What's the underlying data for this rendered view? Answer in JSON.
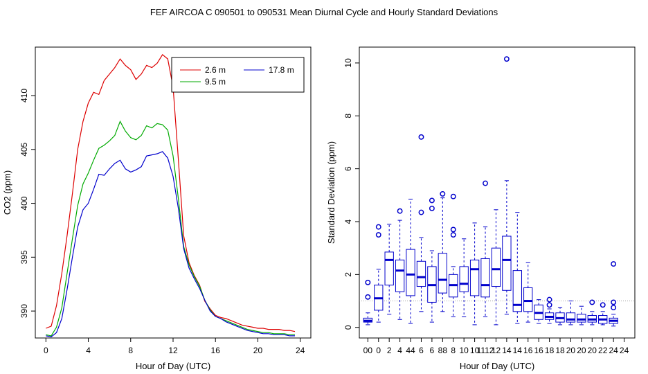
{
  "title": "FEF   AIRCOA C   090501 to 090531   Mean Diurnal Cycle and Hourly Standard Deviations",
  "colors": {
    "h2_6": "#dd0000",
    "h9_5": "#00aa00",
    "h17_8": "#0000cc",
    "box": "#0000cc",
    "ref": "#999999"
  },
  "chart_data": [
    {
      "type": "line",
      "title": "",
      "xlabel": "Hour of Day (UTC)",
      "ylabel": "CO2 (ppm)",
      "xlim": [
        -1,
        25
      ],
      "ylim": [
        387.5,
        414.5
      ],
      "xticks": [
        0,
        4,
        8,
        12,
        16,
        20,
        24
      ],
      "yticks": [
        390,
        395,
        400,
        405,
        410
      ],
      "legend": {
        "position": "top-right",
        "entries": [
          "2.6 m",
          "9.5 m",
          "17.8 m"
        ]
      },
      "series": [
        {
          "name": "2.6 m",
          "color": "#dd0000",
          "x": [
            0,
            0.5,
            1,
            1.5,
            2,
            2.5,
            3,
            3.5,
            4,
            4.5,
            5,
            5.5,
            6,
            6.5,
            7,
            7.5,
            8,
            8.5,
            9,
            9.5,
            10,
            10.5,
            11,
            11.5,
            12,
            12.5,
            13,
            13.5,
            14,
            14.5,
            15,
            15.5,
            16,
            16.5,
            17,
            17.5,
            18,
            18.5,
            19,
            19.5,
            20,
            20.5,
            21,
            21.5,
            22,
            22.5,
            23,
            23.5
          ],
          "y": [
            388.4,
            388.6,
            390.5,
            393.5,
            397.0,
            400.9,
            405.0,
            407.6,
            409.3,
            410.3,
            410.1,
            411.4,
            412.0,
            412.6,
            413.4,
            412.8,
            412.4,
            411.5,
            412.0,
            412.8,
            412.6,
            413.0,
            413.8,
            413.4,
            410.8,
            404.0,
            397.0,
            394.5,
            393.3,
            392.4,
            390.9,
            390.2,
            389.6,
            389.4,
            389.3,
            389.1,
            388.9,
            388.7,
            388.6,
            388.5,
            388.4,
            388.4,
            388.3,
            388.3,
            388.3,
            388.2,
            388.2,
            388.1
          ]
        },
        {
          "name": "9.5 m",
          "color": "#00aa00",
          "x": [
            0,
            0.5,
            1,
            1.5,
            2,
            2.5,
            3,
            3.5,
            4,
            4.5,
            5,
            5.5,
            6,
            6.5,
            7,
            7.5,
            8,
            8.5,
            9,
            9.5,
            10,
            10.5,
            11,
            11.5,
            12,
            12.5,
            13,
            13.5,
            14,
            14.5,
            15,
            15.5,
            16,
            16.5,
            17,
            17.5,
            18,
            18.5,
            19,
            19.5,
            20,
            20.5,
            21,
            21.5,
            22,
            22.5,
            23,
            23.5
          ],
          "y": [
            387.8,
            387.7,
            388.5,
            390.3,
            393.5,
            396.7,
            399.8,
            401.8,
            402.8,
            404.0,
            405.1,
            405.4,
            405.8,
            406.3,
            407.6,
            406.7,
            406.1,
            405.9,
            406.3,
            407.2,
            407.0,
            407.4,
            407.3,
            406.8,
            404.4,
            400.4,
            396.0,
            394.3,
            393.2,
            392.3,
            391.0,
            390.1,
            389.5,
            389.3,
            389.1,
            388.9,
            388.7,
            388.5,
            388.3,
            388.2,
            388.1,
            388.0,
            388.0,
            387.9,
            387.9,
            387.9,
            387.8,
            387.8
          ]
        },
        {
          "name": "17.8 m",
          "color": "#0000cc",
          "x": [
            0,
            0.5,
            1,
            1.5,
            2,
            2.5,
            3,
            3.5,
            4,
            4.5,
            5,
            5.5,
            6,
            6.5,
            7,
            7.5,
            8,
            8.5,
            9,
            9.5,
            10,
            10.5,
            11,
            11.5,
            12,
            12.5,
            13,
            13.5,
            14,
            14.5,
            15,
            15.5,
            16,
            16.5,
            17,
            17.5,
            18,
            18.5,
            19,
            19.5,
            20,
            20.5,
            21,
            21.5,
            22,
            22.5,
            23,
            23.5
          ],
          "y": [
            387.7,
            387.6,
            388.0,
            389.3,
            392.0,
            395.0,
            397.8,
            399.4,
            400.0,
            401.3,
            402.7,
            402.6,
            403.2,
            403.7,
            404.0,
            403.2,
            402.9,
            403.1,
            403.4,
            404.4,
            404.5,
            404.6,
            404.8,
            404.2,
            402.5,
            399.5,
            395.8,
            394.0,
            393.0,
            392.1,
            391.0,
            390.0,
            389.5,
            389.3,
            389.0,
            388.8,
            388.6,
            388.4,
            388.2,
            388.1,
            388.0,
            387.9,
            387.9,
            387.8,
            387.8,
            387.8,
            387.7,
            387.7
          ]
        }
      ]
    },
    {
      "type": "box",
      "title": "",
      "xlabel": "Hour of Day (UTC)",
      "ylabel": "Standard Deviation (ppm)",
      "xlim": [
        -0.8,
        25
      ],
      "ylim": [
        -0.4,
        10.6
      ],
      "yticks": [
        0,
        2,
        4,
        6,
        8,
        10
      ],
      "xtick_labels": [
        "00",
        "0",
        "2",
        "4",
        "44",
        "6",
        "6",
        "88",
        "8",
        "10",
        "10",
        "1112",
        "12",
        "14",
        "14",
        "16",
        "16",
        "18",
        "18",
        "20",
        "20",
        "20",
        "22",
        "24",
        "24"
      ],
      "reference_line": 1,
      "boxes": [
        {
          "x": 0.0,
          "q1": 0.2,
          "median": 0.25,
          "q3": 0.35,
          "wlo": 0.1,
          "whi": 0.55,
          "outliers": [
            1.15,
            1.7
          ]
        },
        {
          "x": 1.0,
          "q1": 0.65,
          "median": 1.1,
          "q3": 1.6,
          "wlo": 0.2,
          "whi": 2.2,
          "outliers": [
            3.5,
            3.8
          ]
        },
        {
          "x": 2.0,
          "q1": 1.6,
          "median": 2.55,
          "q3": 2.85,
          "wlo": 0.5,
          "whi": 3.9,
          "outliers": []
        },
        {
          "x": 3.0,
          "q1": 1.35,
          "median": 2.15,
          "q3": 2.55,
          "wlo": 0.3,
          "whi": 4.05,
          "outliers": [
            4.4
          ]
        },
        {
          "x": 4.0,
          "q1": 1.2,
          "median": 2.0,
          "q3": 2.95,
          "wlo": 0.15,
          "whi": 4.85,
          "outliers": []
        },
        {
          "x": 5.0,
          "q1": 1.55,
          "median": 1.9,
          "q3": 2.5,
          "wlo": 0.6,
          "whi": 3.4,
          "outliers": [
            4.35,
            7.2
          ]
        },
        {
          "x": 6.0,
          "q1": 0.95,
          "median": 1.6,
          "q3": 2.3,
          "wlo": 0.2,
          "whi": 2.9,
          "outliers": [
            4.5,
            4.8
          ]
        },
        {
          "x": 7.0,
          "q1": 1.3,
          "median": 1.8,
          "q3": 2.8,
          "wlo": 0.6,
          "whi": 4.9,
          "outliers": [
            5.05
          ]
        },
        {
          "x": 8.0,
          "q1": 1.15,
          "median": 1.6,
          "q3": 2.0,
          "wlo": 0.4,
          "whi": 2.3,
          "outliers": [
            3.5,
            3.7,
            4.95
          ]
        },
        {
          "x": 9.0,
          "q1": 1.35,
          "median": 1.65,
          "q3": 2.3,
          "wlo": 0.4,
          "whi": 3.35,
          "outliers": []
        },
        {
          "x": 10.0,
          "q1": 1.2,
          "median": 2.2,
          "q3": 2.55,
          "wlo": 0.1,
          "whi": 3.95,
          "outliers": []
        },
        {
          "x": 11.0,
          "q1": 1.15,
          "median": 1.6,
          "q3": 2.6,
          "wlo": 0.4,
          "whi": 3.8,
          "outliers": [
            5.45
          ]
        },
        {
          "x": 12.0,
          "q1": 1.55,
          "median": 2.2,
          "q3": 3.0,
          "wlo": 0.1,
          "whi": 4.45,
          "outliers": []
        },
        {
          "x": 13.0,
          "q1": 1.4,
          "median": 2.55,
          "q3": 3.45,
          "wlo": 0.5,
          "whi": 5.55,
          "outliers": [
            10.15
          ]
        },
        {
          "x": 14.0,
          "q1": 0.6,
          "median": 0.85,
          "q3": 2.15,
          "wlo": 0.15,
          "whi": 4.35,
          "outliers": []
        },
        {
          "x": 15.0,
          "q1": 0.6,
          "median": 1.0,
          "q3": 1.5,
          "wlo": 0.2,
          "whi": 2.45,
          "outliers": []
        },
        {
          "x": 16.0,
          "q1": 0.3,
          "median": 0.55,
          "q3": 0.85,
          "wlo": 0.15,
          "whi": 1.05,
          "outliers": []
        },
        {
          "x": 17.0,
          "q1": 0.3,
          "median": 0.4,
          "q3": 0.55,
          "wlo": 0.15,
          "whi": 0.7,
          "outliers": [
            0.85,
            1.05
          ]
        },
        {
          "x": 18.0,
          "q1": 0.2,
          "median": 0.35,
          "q3": 0.55,
          "wlo": 0.1,
          "whi": 0.75,
          "outliers": []
        },
        {
          "x": 19.0,
          "q1": 0.2,
          "median": 0.3,
          "q3": 0.55,
          "wlo": 0.1,
          "whi": 1.0,
          "outliers": []
        },
        {
          "x": 20.0,
          "q1": 0.2,
          "median": 0.3,
          "q3": 0.5,
          "wlo": 0.1,
          "whi": 0.8,
          "outliers": []
        },
        {
          "x": 21.0,
          "q1": 0.2,
          "median": 0.3,
          "q3": 0.45,
          "wlo": 0.1,
          "whi": 0.6,
          "outliers": [
            0.95
          ]
        },
        {
          "x": 22.0,
          "q1": 0.15,
          "median": 0.3,
          "q3": 0.45,
          "wlo": 0.1,
          "whi": 0.6,
          "outliers": [
            0.85
          ]
        },
        {
          "x": 23.0,
          "q1": 0.15,
          "median": 0.25,
          "q3": 0.35,
          "wlo": 0.05,
          "whi": 0.5,
          "outliers": [
            0.75,
            0.95,
            2.4
          ]
        }
      ]
    }
  ]
}
